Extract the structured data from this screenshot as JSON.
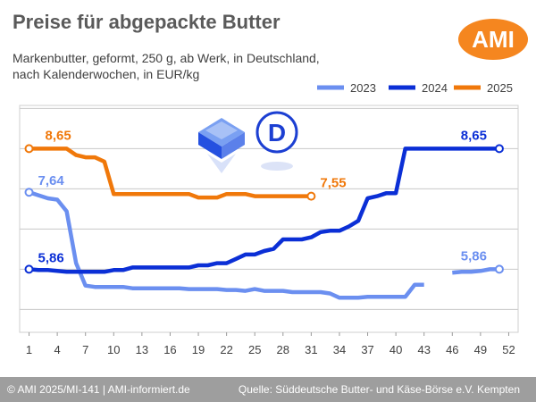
{
  "header": {
    "title": "Preise für abgepackte Butter",
    "subtitle_line1": "Markenbutter, geformt, 250 g, ab Werk, in Deutschland,",
    "subtitle_line2": "nach Kalenderwochen, in EUR/kg",
    "logo_text": "AMI"
  },
  "footer": {
    "left": "© AMI 2025/MI-141 | AMI-informiert.de",
    "right": "Quelle: Süddeutsche Butter- und Käse-Börse e.V. Kempten"
  },
  "colors": {
    "brand": "#f5861f",
    "footer_bg": "#9e9e9e",
    "s2023": "#6b8ff0",
    "s2024": "#0b2fd6",
    "s2025": "#f0780a"
  },
  "icons": [
    "butter-package-icon",
    "country-d-icon"
  ],
  "chart_data": {
    "type": "line",
    "x_ticks": [
      1,
      4,
      7,
      10,
      13,
      16,
      19,
      22,
      25,
      28,
      31,
      34,
      37,
      40,
      43,
      46,
      49,
      52
    ],
    "xlim": [
      0,
      53
    ],
    "ylim": [
      4.4,
      9.65
    ],
    "y_gridlines": [
      4.93,
      5.86,
      6.79,
      7.72,
      8.65,
      9.58
    ],
    "grid": "horizontal",
    "legend_position": "top-right",
    "legend": [
      "2023",
      "2024",
      "2025"
    ],
    "series": [
      {
        "name": "2023",
        "color": "#6b8ff0",
        "x": [
          1,
          2,
          3,
          4,
          5,
          6,
          7,
          8,
          9,
          10,
          11,
          12,
          13,
          14,
          15,
          16,
          17,
          18,
          19,
          20,
          21,
          22,
          23,
          24,
          25,
          26,
          27,
          28,
          29,
          30,
          31,
          32,
          33,
          34,
          35,
          36,
          37,
          38,
          39,
          40,
          41,
          42,
          43
        ],
        "y": [
          7.64,
          7.57,
          7.5,
          7.47,
          7.2,
          6.0,
          5.48,
          5.45,
          5.45,
          5.45,
          5.45,
          5.42,
          5.42,
          5.42,
          5.42,
          5.42,
          5.42,
          5.4,
          5.4,
          5.4,
          5.4,
          5.38,
          5.38,
          5.36,
          5.4,
          5.36,
          5.36,
          5.36,
          5.33,
          5.33,
          5.33,
          5.33,
          5.3,
          5.2,
          5.2,
          5.2,
          5.22,
          5.22,
          5.22,
          5.22,
          5.22,
          5.5,
          5.5
        ]
      },
      {
        "name": "2023",
        "color": "#6b8ff0",
        "x": [
          46,
          47,
          48,
          49,
          50,
          51
        ],
        "y": [
          5.78,
          5.8,
          5.8,
          5.82,
          5.86,
          5.86
        ]
      },
      {
        "name": "2024",
        "color": "#0b2fd6",
        "x": [
          1,
          2,
          3,
          4,
          5,
          6,
          7,
          8,
          9,
          10,
          11,
          12,
          13,
          14,
          15,
          16,
          17,
          18,
          19,
          20,
          21,
          22,
          23,
          24,
          25,
          26,
          27,
          28,
          29,
          30,
          31,
          32,
          33,
          34,
          35,
          36,
          37,
          38,
          39,
          40,
          41,
          42,
          43,
          44,
          45,
          46,
          47,
          48,
          49,
          50,
          51
        ],
        "y": [
          5.86,
          5.84,
          5.84,
          5.82,
          5.8,
          5.8,
          5.8,
          5.8,
          5.8,
          5.84,
          5.84,
          5.9,
          5.9,
          5.9,
          5.9,
          5.9,
          5.9,
          5.9,
          5.95,
          5.95,
          6.0,
          6.0,
          6.1,
          6.2,
          6.2,
          6.28,
          6.33,
          6.55,
          6.55,
          6.55,
          6.6,
          6.72,
          6.75,
          6.75,
          6.85,
          6.98,
          7.5,
          7.55,
          7.62,
          7.62,
          8.65,
          8.65,
          8.65,
          8.65,
          8.65,
          8.65,
          8.65,
          8.65,
          8.65,
          8.65,
          8.65
        ]
      },
      {
        "name": "2025",
        "color": "#f0780a",
        "x": [
          1,
          2,
          3,
          4,
          5,
          6,
          7,
          8,
          9,
          10,
          11,
          12,
          13,
          14,
          15,
          16,
          17,
          18,
          19,
          20,
          21,
          22,
          23,
          24,
          25,
          26,
          27,
          28,
          29,
          30,
          31
        ],
        "y": [
          8.65,
          8.65,
          8.65,
          8.65,
          8.65,
          8.5,
          8.45,
          8.45,
          8.35,
          7.6,
          7.6,
          7.6,
          7.6,
          7.6,
          7.6,
          7.6,
          7.6,
          7.6,
          7.52,
          7.52,
          7.52,
          7.6,
          7.6,
          7.6,
          7.55,
          7.55,
          7.55,
          7.55,
          7.55,
          7.55,
          7.55
        ]
      }
    ],
    "data_labels": [
      {
        "text": "7,64",
        "series": "2023",
        "x": 1,
        "y": 7.64
      },
      {
        "text": "5,86",
        "series": "2024",
        "x": 1,
        "y": 5.86
      },
      {
        "text": "8,65",
        "series": "2025",
        "x": 1,
        "y": 8.65
      },
      {
        "text": "7,55",
        "series": "2025",
        "x": 31,
        "y": 7.55
      },
      {
        "text": "8,65",
        "series": "2024",
        "x": 51,
        "y": 8.65
      },
      {
        "text": "5,86",
        "series": "2023",
        "x": 51,
        "y": 5.86
      }
    ]
  }
}
